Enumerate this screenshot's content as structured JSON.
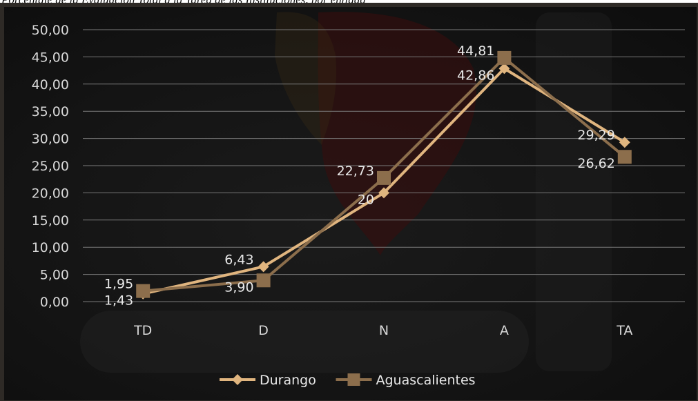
{
  "caption": "Porcentaje de la Evaluación Total a la Tarea de las Instituciones, por entidad",
  "chart_data": {
    "type": "line",
    "categories": [
      "TD",
      "D",
      "N",
      "A",
      "TA"
    ],
    "ylim": [
      0,
      50
    ],
    "yticks": [
      "0,00",
      "5,00",
      "10,00",
      "15,00",
      "20,00",
      "25,00",
      "30,00",
      "35,00",
      "40,00",
      "45,00",
      "50,00"
    ],
    "grid": true,
    "legend_position": "bottom",
    "series": [
      {
        "name": "Durango",
        "values": [
          1.43,
          6.43,
          20,
          42.86,
          29.29
        ],
        "labels": [
          "1,43",
          "6,43",
          "20",
          "42,86",
          "29,29"
        ],
        "marker": "diamond",
        "color": "#e0b57f"
      },
      {
        "name": "Aguascalientes",
        "values": [
          1.95,
          3.9,
          22.73,
          44.81,
          26.62
        ],
        "labels": [
          "1,95",
          "3,90",
          "22,73",
          "44,81",
          "26,62"
        ],
        "marker": "square",
        "color": "#8c6e4c"
      }
    ]
  }
}
